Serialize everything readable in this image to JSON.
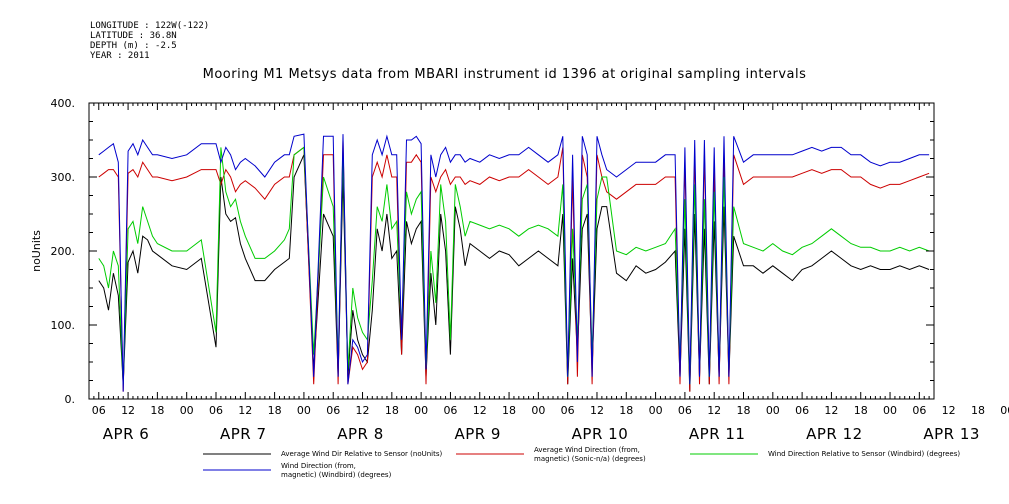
{
  "meta": {
    "longitude": "LONGITUDE : 122W(-122)",
    "latitude": "LATITUDE : 36.8N",
    "depth": "DEPTH (m) : -2.5",
    "year": "YEAR : 2011"
  },
  "chart_data": {
    "type": "line",
    "title": "Mooring M1 Metsys data from MBARI instrument id 1396 at original sampling intervals",
    "ylabel": "noUnits",
    "ylim": [
      0,
      400
    ],
    "yticks": [
      "0.",
      "100.",
      "200.",
      "300.",
      "400."
    ],
    "ytick_values": [
      0,
      100,
      200,
      300,
      400
    ],
    "x_range_hours": [
      4,
      177
    ],
    "hour_ticks": [
      "06",
      "12",
      "18",
      "00",
      "06",
      "12",
      "18",
      "00",
      "06",
      "12",
      "18",
      "00",
      "06",
      "12",
      "18",
      "00",
      "06",
      "12",
      "18",
      "00",
      "06",
      "12",
      "18",
      "00",
      "06",
      "12",
      "18",
      "00",
      "06",
      "12",
      "18",
      "00",
      "06"
    ],
    "day_labels": [
      {
        "text": "APR 6",
        "hour": 6
      },
      {
        "text": "APR 7",
        "hour": 30
      },
      {
        "text": "APR 8",
        "hour": 54
      },
      {
        "text": "APR 9",
        "hour": 78
      },
      {
        "text": "APR 10",
        "hour": 102
      },
      {
        "text": "APR 11",
        "hour": 126
      },
      {
        "text": "APR 12",
        "hour": 150
      },
      {
        "text": "APR 13",
        "hour": 174
      }
    ],
    "series": [
      {
        "name": "Average Wind Dir Relative to Sensor (noUnits)",
        "color": "#000000",
        "x": [
          6,
          7,
          8,
          9,
          10,
          11,
          12,
          13,
          14,
          15,
          16,
          17,
          18,
          21,
          24,
          27,
          30,
          31,
          32,
          33,
          34,
          35,
          36,
          38,
          40,
          42,
          44,
          45,
          46,
          48,
          50,
          52,
          54,
          55,
          56,
          57,
          58,
          59,
          60,
          61,
          62,
          63,
          64,
          65,
          66,
          67,
          68,
          69,
          70,
          71,
          72,
          73,
          74,
          75,
          76,
          77,
          78,
          79,
          80,
          81,
          82,
          84,
          86,
          88,
          90,
          92,
          94,
          96,
          98,
          100,
          101,
          102,
          103,
          104,
          105,
          106,
          107,
          108,
          109,
          110,
          112,
          114,
          116,
          118,
          120,
          122,
          124,
          125,
          126,
          127,
          128,
          129,
          130,
          131,
          132,
          133,
          134,
          135,
          136,
          138,
          140,
          142,
          144,
          146,
          148,
          150,
          152,
          154,
          156,
          158,
          160,
          162,
          164,
          166,
          168,
          170,
          172,
          174,
          176
        ],
        "y": [
          160,
          150,
          120,
          170,
          140,
          20,
          185,
          200,
          170,
          220,
          215,
          200,
          195,
          180,
          175,
          190,
          70,
          300,
          250,
          240,
          245,
          210,
          190,
          160,
          160,
          175,
          185,
          190,
          300,
          330,
          40,
          250,
          220,
          30,
          300,
          30,
          120,
          80,
          60,
          50,
          120,
          230,
          200,
          250,
          190,
          200,
          60,
          240,
          210,
          230,
          240,
          30,
          170,
          100,
          250,
          200,
          60,
          260,
          230,
          180,
          210,
          200,
          190,
          200,
          195,
          180,
          190,
          200,
          190,
          180,
          250,
          20,
          190,
          60,
          230,
          250,
          40,
          230,
          260,
          260,
          170,
          160,
          180,
          170,
          175,
          185,
          200,
          30,
          230,
          10,
          250,
          30,
          230,
          20,
          240,
          30,
          260,
          30,
          220,
          180,
          180,
          170,
          180,
          170,
          160,
          175,
          180,
          190,
          200,
          190,
          180,
          175,
          180,
          175,
          175,
          180,
          175,
          180,
          175
        ]
      },
      {
        "name": "Average Wind Direction (from, magnetic) (Sonic-n/a) (degrees)",
        "color": "#cc0000",
        "x": [
          6,
          7,
          8,
          9,
          10,
          11,
          12,
          13,
          14,
          15,
          16,
          17,
          18,
          21,
          24,
          27,
          30,
          31,
          32,
          33,
          34,
          35,
          36,
          38,
          40,
          42,
          44,
          45,
          46,
          48,
          50,
          52,
          54,
          55,
          56,
          57,
          58,
          59,
          60,
          61,
          62,
          63,
          64,
          65,
          66,
          67,
          68,
          69,
          70,
          71,
          72,
          73,
          74,
          75,
          76,
          77,
          78,
          79,
          80,
          81,
          82,
          84,
          86,
          88,
          90,
          92,
          94,
          96,
          98,
          100,
          101,
          102,
          103,
          104,
          105,
          106,
          107,
          108,
          109,
          110,
          112,
          114,
          116,
          118,
          120,
          122,
          124,
          125,
          126,
          127,
          128,
          129,
          130,
          131,
          132,
          133,
          134,
          135,
          136,
          138,
          140,
          142,
          144,
          146,
          148,
          150,
          152,
          154,
          156,
          158,
          160,
          162,
          164,
          166,
          168,
          170,
          172,
          174,
          176
        ],
        "y": [
          300,
          305,
          310,
          310,
          300,
          10,
          305,
          310,
          300,
          320,
          310,
          300,
          300,
          295,
          300,
          310,
          310,
          290,
          310,
          300,
          280,
          290,
          295,
          285,
          270,
          290,
          300,
          300,
          330,
          340,
          20,
          330,
          330,
          20,
          350,
          20,
          70,
          60,
          40,
          50,
          300,
          320,
          300,
          330,
          300,
          300,
          60,
          320,
          320,
          330,
          320,
          20,
          300,
          280,
          300,
          310,
          290,
          300,
          300,
          290,
          295,
          290,
          300,
          295,
          300,
          300,
          310,
          300,
          290,
          300,
          340,
          20,
          300,
          30,
          330,
          300,
          20,
          330,
          300,
          280,
          270,
          280,
          290,
          290,
          290,
          300,
          300,
          20,
          320,
          10,
          330,
          20,
          330,
          20,
          310,
          20,
          330,
          20,
          330,
          290,
          300,
          300,
          300,
          300,
          300,
          305,
          310,
          305,
          310,
          310,
          300,
          300,
          290,
          285,
          290,
          290,
          295,
          300,
          305
        ]
      },
      {
        "name": "Wind Direction Relative to Sensor (Windbird) (degrees)",
        "color": "#00cc00",
        "x": [
          6,
          7,
          8,
          9,
          10,
          11,
          12,
          13,
          14,
          15,
          16,
          17,
          18,
          21,
          24,
          27,
          30,
          31,
          32,
          33,
          34,
          35,
          36,
          38,
          40,
          42,
          44,
          45,
          46,
          48,
          50,
          52,
          54,
          55,
          56,
          57,
          58,
          59,
          60,
          61,
          62,
          63,
          64,
          65,
          66,
          67,
          68,
          69,
          70,
          71,
          72,
          73,
          74,
          75,
          76,
          77,
          78,
          79,
          80,
          81,
          82,
          84,
          86,
          88,
          90,
          92,
          94,
          96,
          98,
          100,
          101,
          102,
          103,
          104,
          105,
          106,
          107,
          108,
          109,
          110,
          112,
          114,
          116,
          118,
          120,
          122,
          124,
          125,
          126,
          127,
          128,
          129,
          130,
          131,
          132,
          133,
          134,
          135,
          136,
          138,
          140,
          142,
          144,
          146,
          148,
          150,
          152,
          154,
          156,
          158,
          160,
          162,
          164,
          166,
          168,
          170,
          172,
          174,
          176
        ],
        "y": [
          190,
          180,
          150,
          200,
          180,
          20,
          230,
          240,
          210,
          260,
          240,
          220,
          210,
          200,
          200,
          215,
          90,
          340,
          280,
          260,
          270,
          240,
          220,
          190,
          190,
          200,
          215,
          230,
          330,
          340,
          60,
          300,
          260,
          50,
          330,
          40,
          150,
          110,
          90,
          80,
          160,
          260,
          240,
          290,
          230,
          240,
          90,
          280,
          250,
          270,
          280,
          40,
          200,
          130,
          290,
          240,
          80,
          290,
          260,
          220,
          240,
          235,
          230,
          235,
          230,
          220,
          230,
          235,
          230,
          220,
          290,
          30,
          230,
          80,
          270,
          290,
          60,
          270,
          300,
          300,
          200,
          195,
          205,
          200,
          205,
          210,
          230,
          50,
          270,
          20,
          290,
          40,
          270,
          30,
          280,
          40,
          300,
          40,
          260,
          210,
          205,
          200,
          210,
          200,
          195,
          205,
          210,
          220,
          230,
          220,
          210,
          205,
          205,
          200,
          200,
          205,
          200,
          205,
          200
        ]
      },
      {
        "name": "Wind Direction (from, magnetic) (Windbird) (degrees)",
        "color": "#0000cc",
        "x": [
          6,
          7,
          8,
          9,
          10,
          11,
          12,
          13,
          14,
          15,
          16,
          17,
          18,
          21,
          24,
          27,
          30,
          31,
          32,
          33,
          34,
          35,
          36,
          38,
          40,
          42,
          44,
          45,
          46,
          48,
          50,
          52,
          54,
          55,
          56,
          57,
          58,
          59,
          60,
          61,
          62,
          63,
          64,
          65,
          66,
          67,
          68,
          69,
          70,
          71,
          72,
          73,
          74,
          75,
          76,
          77,
          78,
          79,
          80,
          81,
          82,
          84,
          86,
          88,
          90,
          92,
          94,
          96,
          98,
          100,
          101,
          102,
          103,
          104,
          105,
          106,
          107,
          108,
          109,
          110,
          112,
          114,
          116,
          118,
          120,
          122,
          124,
          125,
          126,
          127,
          128,
          129,
          130,
          131,
          132,
          133,
          134,
          135,
          136,
          138,
          140,
          142,
          144,
          146,
          148,
          150,
          152,
          154,
          156,
          158,
          160,
          162,
          164,
          166,
          168,
          170,
          172,
          174,
          176
        ],
        "y": [
          330,
          335,
          340,
          345,
          320,
          10,
          335,
          345,
          330,
          350,
          340,
          330,
          330,
          325,
          330,
          345,
          345,
          320,
          340,
          330,
          310,
          320,
          325,
          315,
          300,
          320,
          330,
          330,
          355,
          358,
          30,
          355,
          355,
          30,
          358,
          20,
          80,
          70,
          50,
          60,
          330,
          350,
          330,
          355,
          330,
          330,
          80,
          350,
          350,
          355,
          345,
          40,
          330,
          300,
          330,
          340,
          320,
          330,
          330,
          320,
          325,
          320,
          330,
          325,
          330,
          330,
          340,
          330,
          320,
          330,
          355,
          30,
          330,
          50,
          355,
          330,
          30,
          355,
          330,
          310,
          300,
          310,
          320,
          320,
          320,
          330,
          330,
          30,
          340,
          20,
          350,
          30,
          350,
          30,
          340,
          30,
          355,
          30,
          355,
          320,
          330,
          330,
          330,
          330,
          330,
          335,
          340,
          335,
          340,
          340,
          330,
          330,
          320,
          315,
          320,
          320,
          325,
          330,
          330
        ]
      }
    ]
  },
  "legend": {
    "items": [
      {
        "color": "#000000",
        "line1": "Average Wind Dir Relative to Sensor (noUnits)",
        "line2": ""
      },
      {
        "color": "#cc0000",
        "line1": "Average Wind Direction (from,",
        "line2": "magnetic) (Sonic-n/a) (degrees)"
      },
      {
        "color": "#00cc00",
        "line1": "Wind Direction Relative to Sensor (Windbird) (degrees)",
        "line2": ""
      },
      {
        "color": "#0000cc",
        "line1": "Wind Direction (from,",
        "line2": "magnetic) (Windbird) (degrees)"
      }
    ]
  }
}
